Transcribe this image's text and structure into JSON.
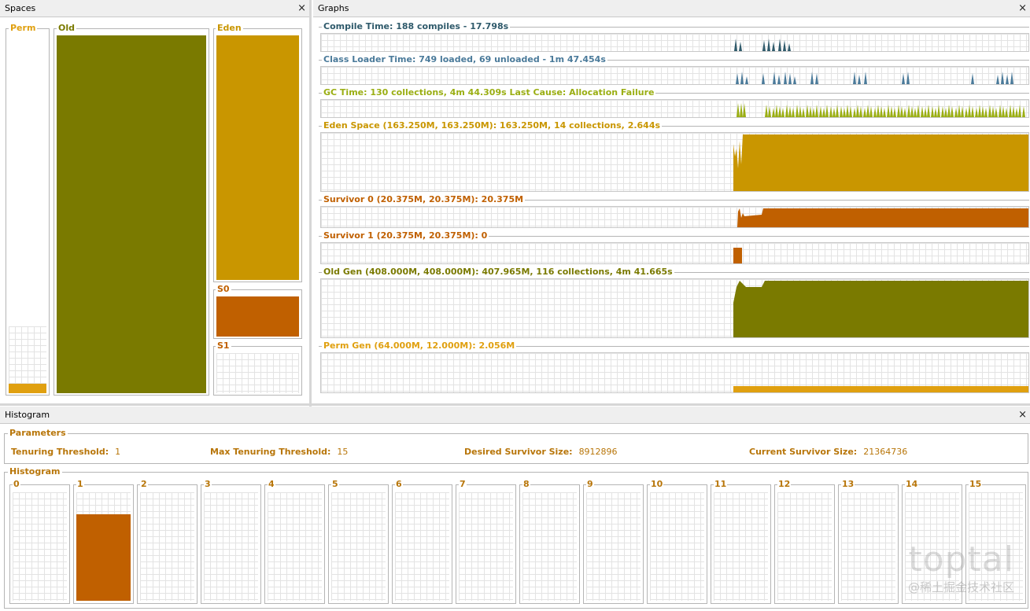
{
  "spaces": {
    "title": "Spaces",
    "close": "×",
    "perm": "Perm",
    "old": "Old",
    "eden": "Eden",
    "s0": "S0",
    "s1": "S1"
  },
  "graphs": {
    "title": "Graphs",
    "close": "×",
    "items": [
      {
        "label": "Compile Time: 188 compiles - 17.798s",
        "color": "#2f5a6b"
      },
      {
        "label": "Class Loader Time: 749 loaded, 69 unloaded - 1m 47.454s",
        "color": "#4a7a9a"
      },
      {
        "label": "GC Time: 130 collections, 4m 44.309s  Last Cause: Allocation Failure",
        "color": "#9aae12"
      },
      {
        "label": "Eden Space (163.250M, 163.250M): 163.250M, 14 collections, 2.644s",
        "color": "#c99600"
      },
      {
        "label": "Survivor 0 (20.375M, 20.375M): 20.375M",
        "color": "#c06000"
      },
      {
        "label": "Survivor 1 (20.375M, 20.375M): 0",
        "color": "#c06000"
      },
      {
        "label": "Old Gen (408.000M, 408.000M): 407.965M, 116 collections, 4m 41.665s",
        "color": "#7a7a00"
      },
      {
        "label": "Perm Gen (64.000M, 12.000M): 2.056M",
        "color": "#e0a010"
      }
    ]
  },
  "histogram": {
    "title": "Histogram",
    "close": "×",
    "parameters_title": "Parameters",
    "histogram_title": "Histogram",
    "params": [
      {
        "label": "Tenuring Threshold:",
        "value": "1"
      },
      {
        "label": "Max Tenuring Threshold:",
        "value": "15"
      },
      {
        "label": "Desired Survivor Size:",
        "value": "8912896"
      },
      {
        "label": "Current Survivor Size:",
        "value": "21364736"
      }
    ],
    "bins": [
      "0",
      "1",
      "2",
      "3",
      "4",
      "5",
      "6",
      "7",
      "8",
      "9",
      "10",
      "11",
      "12",
      "13",
      "14",
      "15"
    ],
    "fill_fractions": [
      0,
      0.8,
      0,
      0,
      0,
      0,
      0,
      0,
      0,
      0,
      0,
      0,
      0,
      0,
      0,
      0
    ]
  },
  "watermark": {
    "brand": "toptal",
    "sub": "@稀土掘金技术社区"
  },
  "colors": {
    "old": "#7a7a00",
    "eden": "#c99600",
    "s0": "#c06000",
    "perm": "#e0a010",
    "compile": "#2f5a6b",
    "classloader": "#4a7a9a",
    "gc": "#9aae12"
  }
}
